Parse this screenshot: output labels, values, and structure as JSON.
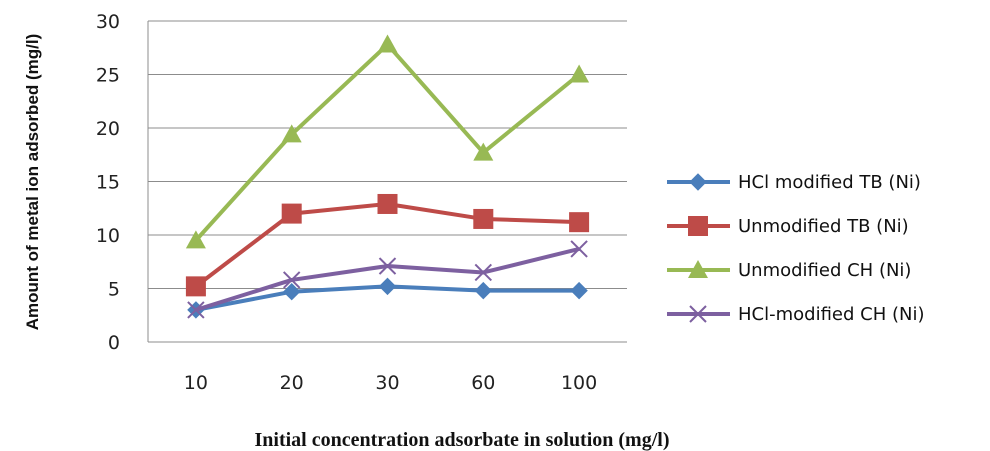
{
  "chart_data": {
    "type": "line",
    "title": "",
    "xlabel": "Initial concentration adsorbate in solution (mg/l)",
    "ylabel": "Amount of metal ion adsorbed (mg/l)",
    "categories": [
      "10",
      "20",
      "30",
      "60",
      "100"
    ],
    "ylim": [
      0,
      30
    ],
    "yticks": [
      "0",
      "5",
      "10",
      "15",
      "20",
      "25",
      "30"
    ],
    "grid": "horizontal",
    "legend_position": "right",
    "series": [
      {
        "name": "HCl modified TB (Ni)",
        "values": [
          3.0,
          4.7,
          5.2,
          4.8,
          4.8
        ],
        "color": "#4a7ebb",
        "marker": "diamond"
      },
      {
        "name": "Unmodified TB (Ni)",
        "values": [
          5.2,
          12.0,
          12.9,
          11.5,
          11.2
        ],
        "color": "#be4b48",
        "marker": "square"
      },
      {
        "name": "Unmodified CH (Ni)",
        "values": [
          9.5,
          19.4,
          27.8,
          17.7,
          25.0
        ],
        "color": "#98b954",
        "marker": "triangle"
      },
      {
        "name": "HCl-modified CH (Ni)",
        "values": [
          3.0,
          5.8,
          7.1,
          6.5,
          8.7
        ],
        "color": "#7d60a0",
        "marker": "x"
      }
    ]
  }
}
